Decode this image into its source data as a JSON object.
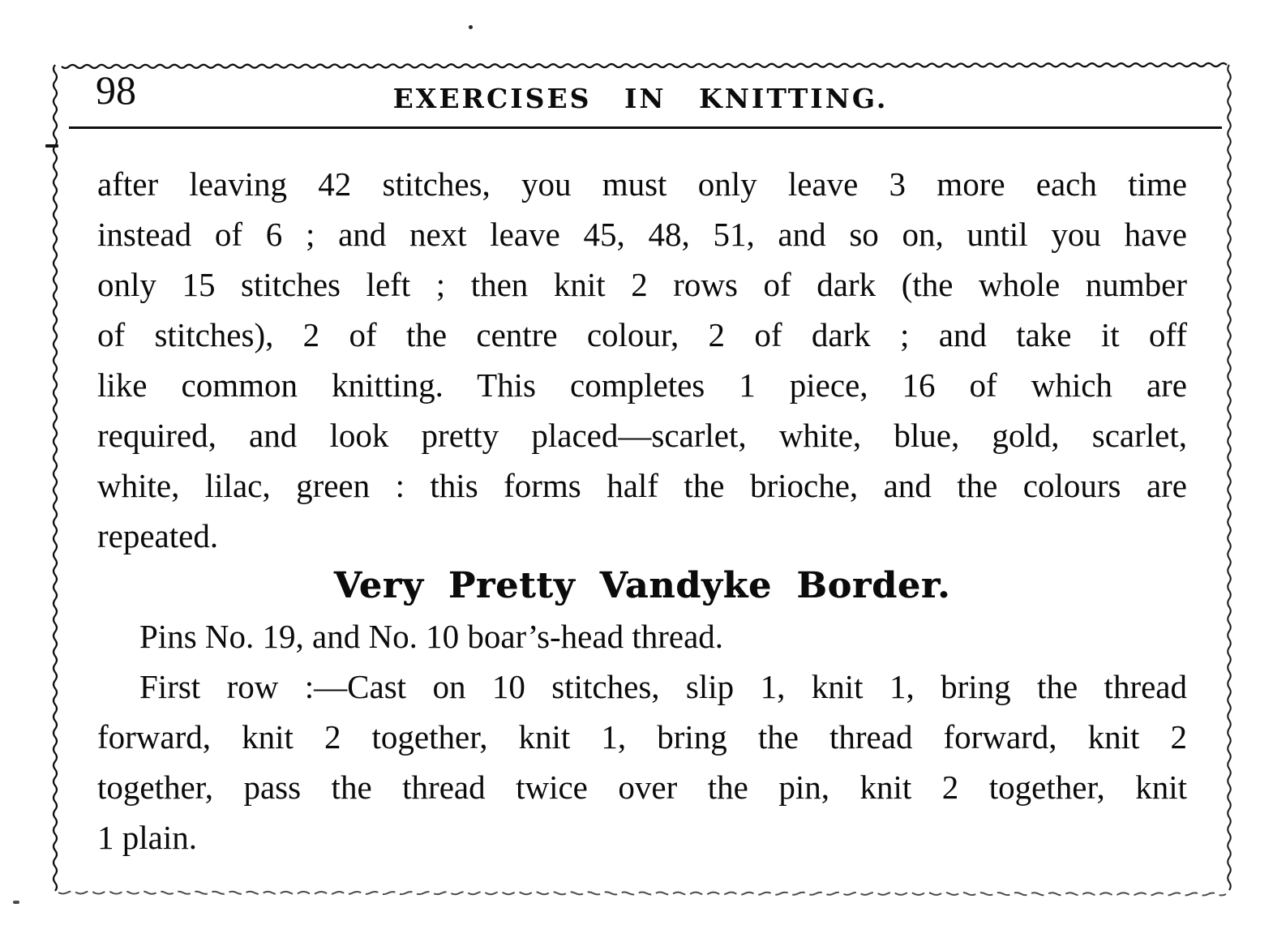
{
  "page": {
    "number": "98",
    "running_title": "EXERCISES IN KNITTING."
  },
  "article": {
    "para1_lines": [
      "after leaving 42 stitches, you must only leave 3 more each time",
      "instead of 6 ; and next leave 45, 48, 51, and so on, until you have",
      "only 15 stitches left ; then knit 2 rows of dark (the whole number",
      "of stitches), 2 of the centre colour, 2 of dark ; and take it off",
      "like common knitting.  This completes 1 piece, 16 of which are",
      "required, and look pretty placed—scarlet, white, blue, gold, scarlet,",
      "white, lilac, green : this forms half the brioche, and the colours are",
      "repeated."
    ],
    "section_heading": "Very Pretty Vandyke Border.",
    "para2_line": "Pins No. 19, and No. 10 boar’s-head thread.",
    "para3_lines": [
      "First row :—Cast on 10 stitches, slip 1, knit 1, bring the thread",
      "forward, knit 2 together, knit 1, bring the thread forward, knit 2",
      "together, pass the thread twice over the pin, knit 2 together, knit",
      "1 plain."
    ]
  },
  "colors": {
    "ink": "#0b0b0b",
    "paper": "#ffffff"
  }
}
